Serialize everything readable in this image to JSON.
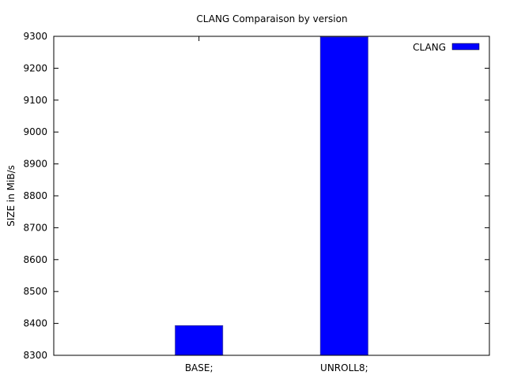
{
  "chart_data": {
    "type": "bar",
    "title": "CLANG Comparaison by version",
    "ylabel": "SIZE in MiB/s",
    "xlabel": "",
    "categories": [
      "BASE;",
      "UNROLL8;"
    ],
    "series": [
      {
        "name": "CLANG",
        "values": [
          8393,
          9298
        ],
        "color": "#0000ff"
      }
    ],
    "ylim": [
      8300,
      9300
    ],
    "yticks": [
      8300,
      8400,
      8500,
      8600,
      8700,
      8800,
      8900,
      9000,
      9100,
      9200,
      9300
    ],
    "grid": false,
    "legend": "top-right"
  }
}
